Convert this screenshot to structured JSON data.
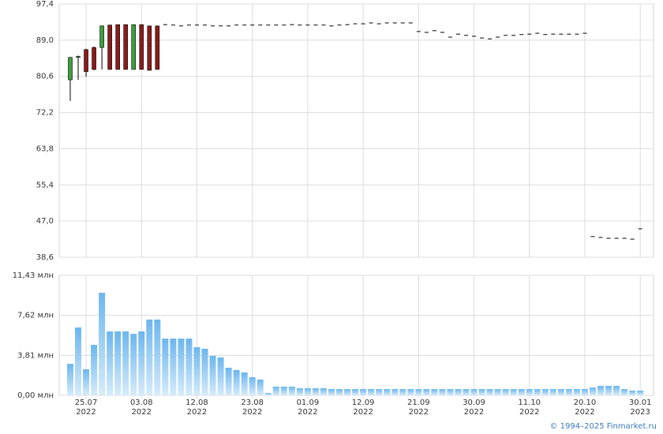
{
  "chart_data": [
    {
      "type": "candlestick",
      "up_color": "#3f9f3f",
      "down_color": "#8b1c1c",
      "grid": true,
      "ylim": [
        38.6,
        97.4
      ],
      "yticks": [
        {
          "value": 38.6,
          "label": "38,6"
        },
        {
          "value": 47.0,
          "label": "47,0"
        },
        {
          "value": 55.4,
          "label": "55,4"
        },
        {
          "value": 63.8,
          "label": "63,8"
        },
        {
          "value": 72.2,
          "label": "72,2"
        },
        {
          "value": 80.6,
          "label": "80,6"
        },
        {
          "value": 89.0,
          "label": "89,0"
        },
        {
          "value": 97.4,
          "label": "97,4"
        }
      ],
      "open": [
        79.8,
        85.0,
        86.8,
        87.3,
        87.3,
        92.5,
        92.6,
        92.6,
        82.2,
        92.6,
        92.3,
        92.3,
        null,
        null,
        null,
        null,
        null,
        null,
        null,
        null,
        null,
        null,
        null,
        null,
        null,
        null,
        null,
        null,
        null,
        null,
        null,
        null,
        null,
        null,
        null,
        null,
        null,
        null,
        null,
        null,
        null,
        null,
        null,
        null,
        null,
        null,
        null,
        null,
        null,
        null,
        null,
        null,
        null,
        null,
        null,
        null,
        null,
        null,
        null,
        null,
        null,
        null,
        null,
        null,
        null,
        null,
        null,
        null,
        null,
        null,
        null,
        null,
        null
      ],
      "high": [
        85.0,
        85.4,
        87.0,
        87.5,
        92.4,
        92.5,
        92.6,
        92.6,
        92.6,
        92.6,
        92.3,
        92.3,
        null,
        null,
        null,
        null,
        null,
        null,
        null,
        null,
        null,
        null,
        null,
        null,
        null,
        null,
        null,
        null,
        null,
        null,
        null,
        null,
        null,
        null,
        null,
        null,
        null,
        null,
        null,
        null,
        null,
        null,
        null,
        null,
        null,
        null,
        null,
        null,
        null,
        null,
        null,
        null,
        null,
        null,
        null,
        null,
        null,
        null,
        null,
        null,
        null,
        null,
        null,
        null,
        null,
        null,
        null,
        null,
        null,
        null,
        null,
        null,
        null
      ],
      "low": [
        74.9,
        79.8,
        80.5,
        82.0,
        82.2,
        82.2,
        82.2,
        82.2,
        82.2,
        82.2,
        82.0,
        82.2,
        null,
        null,
        null,
        null,
        null,
        null,
        null,
        null,
        null,
        null,
        null,
        null,
        null,
        null,
        null,
        null,
        null,
        null,
        null,
        null,
        null,
        null,
        null,
        null,
        null,
        null,
        null,
        null,
        null,
        null,
        null,
        null,
        null,
        null,
        null,
        null,
        null,
        null,
        null,
        null,
        null,
        null,
        null,
        null,
        null,
        null,
        null,
        null,
        null,
        null,
        null,
        null,
        null,
        null,
        null,
        null,
        null,
        null,
        null,
        null,
        null
      ],
      "close": [
        85.0,
        85.2,
        81.7,
        82.2,
        92.3,
        82.2,
        82.2,
        82.2,
        92.6,
        82.2,
        82.0,
        82.2,
        92.6,
        92.5,
        92.3,
        92.5,
        92.5,
        92.5,
        92.3,
        92.3,
        92.3,
        92.5,
        92.5,
        92.5,
        92.5,
        92.5,
        92.5,
        92.5,
        92.6,
        92.5,
        92.5,
        92.5,
        92.5,
        92.3,
        92.5,
        92.6,
        92.8,
        92.8,
        93.0,
        92.8,
        93.0,
        93.0,
        93.0,
        93.0,
        91.0,
        90.8,
        91.2,
        90.8,
        89.7,
        90.4,
        90.1,
        89.9,
        89.5,
        89.3,
        89.7,
        90.1,
        90.1,
        90.3,
        90.4,
        90.6,
        90.3,
        90.4,
        90.4,
        90.4,
        90.4,
        90.6,
        43.4,
        43.2,
        43.0,
        43.0,
        43.0,
        42.8,
        45.2
      ]
    },
    {
      "type": "bar",
      "color": "#6cb6ee",
      "grid": true,
      "ylim": [
        0,
        11.43
      ],
      "yticks": [
        {
          "value": 0,
          "label": "0,00 млн"
        },
        {
          "value": 3.81,
          "label": "3,81 млн"
        },
        {
          "value": 7.62,
          "label": "7,62 млн"
        },
        {
          "value": 11.43,
          "label": "11,43 млн"
        }
      ],
      "categories": [
        null,
        null,
        "25.07\n2022",
        null,
        null,
        null,
        null,
        null,
        null,
        "03.08\n2022",
        null,
        null,
        null,
        null,
        null,
        null,
        "12.08\n2022",
        null,
        null,
        null,
        null,
        null,
        null,
        "23.08\n2022",
        null,
        null,
        null,
        null,
        null,
        null,
        "01.09\n2022",
        null,
        null,
        null,
        null,
        null,
        null,
        "12.09\n2022",
        null,
        null,
        null,
        null,
        null,
        null,
        "21.09\n2022",
        null,
        null,
        null,
        null,
        null,
        null,
        "30.09\n2022",
        null,
        null,
        null,
        null,
        null,
        null,
        "11.10\n2022",
        null,
        null,
        null,
        null,
        null,
        null,
        "20.10\n2022",
        null,
        null,
        null,
        null,
        null,
        null,
        "30.01\n2023"
      ],
      "values": [
        3.0,
        6.47,
        2.48,
        4.81,
        9.77,
        6.09,
        6.09,
        6.09,
        5.86,
        6.09,
        7.22,
        7.22,
        5.41,
        5.41,
        5.41,
        5.41,
        4.59,
        4.44,
        3.76,
        3.61,
        2.63,
        2.41,
        2.18,
        1.73,
        1.5,
        0.23,
        0.83,
        0.83,
        0.83,
        0.68,
        0.68,
        0.68,
        0.68,
        0.6,
        0.6,
        0.6,
        0.6,
        0.6,
        0.6,
        0.6,
        0.6,
        0.6,
        0.6,
        0.6,
        0.6,
        0.6,
        0.6,
        0.6,
        0.6,
        0.6,
        0.6,
        0.6,
        0.6,
        0.6,
        0.6,
        0.6,
        0.6,
        0.6,
        0.6,
        0.6,
        0.6,
        0.6,
        0.6,
        0.6,
        0.6,
        0.6,
        0.75,
        0.9,
        0.9,
        0.9,
        0.6,
        0.45,
        0.45
      ]
    }
  ],
  "copyright": "© 1994–2025 Finmarket.ru"
}
